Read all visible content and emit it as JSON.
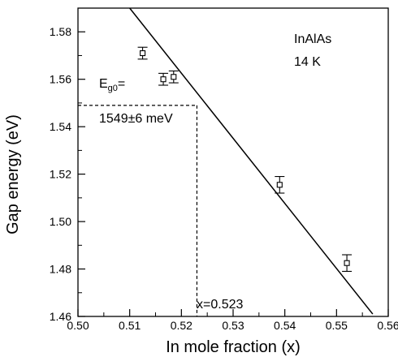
{
  "chart_data": {
    "type": "scatter",
    "title": "",
    "xlabel": "In mole fraction (x)",
    "ylabel": "Gap energy (eV)",
    "xlim": [
      0.5,
      0.56
    ],
    "ylim": [
      1.46,
      1.59
    ],
    "x_ticks": [
      "0.50",
      "0.51",
      "0.52",
      "0.53",
      "0.54",
      "0.55",
      "0.56"
    ],
    "y_ticks": [
      "1.46",
      "1.48",
      "1.50",
      "1.52",
      "1.54",
      "1.56",
      "1.58"
    ],
    "grid": false,
    "points": [
      {
        "x": 0.5125,
        "y": 1.571,
        "yerr": 0.0025
      },
      {
        "x": 0.5165,
        "y": 1.56,
        "yerr": 0.0025
      },
      {
        "x": 0.5185,
        "y": 1.561,
        "yerr": 0.0025
      },
      {
        "x": 0.539,
        "y": 1.5155,
        "yerr": 0.0035
      },
      {
        "x": 0.552,
        "y": 1.4825,
        "yerr": 0.0035
      }
    ],
    "fit_line": {
      "x1": 0.51,
      "y1": 1.59,
      "x2": 0.557,
      "y2": 1.461
    },
    "guide": {
      "x": 0.523,
      "y": 1.549
    },
    "annotations": {
      "sample": "InAlAs",
      "temperature": "14 K",
      "egap_label_main": "E",
      "egap_label_sub": "g0",
      "egap_label_tail": "=",
      "egap_value": "1549±6  meV",
      "x_value": "x=0.523"
    }
  }
}
